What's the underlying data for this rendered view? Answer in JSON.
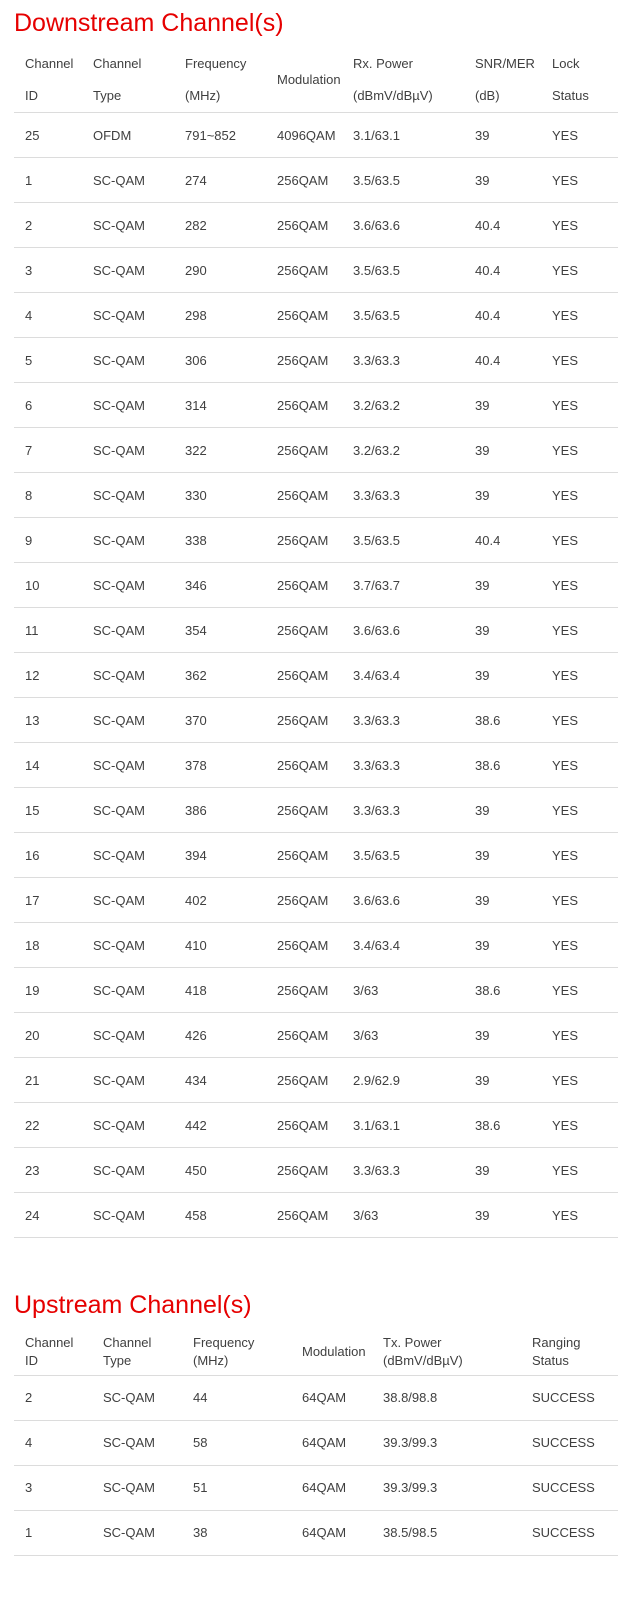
{
  "theme": {
    "accent_red": "#e60000",
    "text_color": "#3f3f3f",
    "border_color": "#dcdcdc",
    "background": "#ffffff"
  },
  "downstream": {
    "title": "Downstream Channel(s)",
    "headers": [
      "Channel\nID",
      "Channel Type",
      "Frequency\n(MHz)",
      "Modulation",
      "Rx. Power\n(dBmV/dBµV)",
      "SNR/MER\n(dB)",
      "Lock\nStatus"
    ],
    "rows": [
      [
        "25",
        "OFDM",
        "791~852",
        "4096QAM",
        "3.1/63.1",
        "39",
        "YES"
      ],
      [
        "1",
        "SC-QAM",
        "274",
        "256QAM",
        "3.5/63.5",
        "39",
        "YES"
      ],
      [
        "2",
        "SC-QAM",
        "282",
        "256QAM",
        "3.6/63.6",
        "40.4",
        "YES"
      ],
      [
        "3",
        "SC-QAM",
        "290",
        "256QAM",
        "3.5/63.5",
        "40.4",
        "YES"
      ],
      [
        "4",
        "SC-QAM",
        "298",
        "256QAM",
        "3.5/63.5",
        "40.4",
        "YES"
      ],
      [
        "5",
        "SC-QAM",
        "306",
        "256QAM",
        "3.3/63.3",
        "40.4",
        "YES"
      ],
      [
        "6",
        "SC-QAM",
        "314",
        "256QAM",
        "3.2/63.2",
        "39",
        "YES"
      ],
      [
        "7",
        "SC-QAM",
        "322",
        "256QAM",
        "3.2/63.2",
        "39",
        "YES"
      ],
      [
        "8",
        "SC-QAM",
        "330",
        "256QAM",
        "3.3/63.3",
        "39",
        "YES"
      ],
      [
        "9",
        "SC-QAM",
        "338",
        "256QAM",
        "3.5/63.5",
        "40.4",
        "YES"
      ],
      [
        "10",
        "SC-QAM",
        "346",
        "256QAM",
        "3.7/63.7",
        "39",
        "YES"
      ],
      [
        "11",
        "SC-QAM",
        "354",
        "256QAM",
        "3.6/63.6",
        "39",
        "YES"
      ],
      [
        "12",
        "SC-QAM",
        "362",
        "256QAM",
        "3.4/63.4",
        "39",
        "YES"
      ],
      [
        "13",
        "SC-QAM",
        "370",
        "256QAM",
        "3.3/63.3",
        "38.6",
        "YES"
      ],
      [
        "14",
        "SC-QAM",
        "378",
        "256QAM",
        "3.3/63.3",
        "38.6",
        "YES"
      ],
      [
        "15",
        "SC-QAM",
        "386",
        "256QAM",
        "3.3/63.3",
        "39",
        "YES"
      ],
      [
        "16",
        "SC-QAM",
        "394",
        "256QAM",
        "3.5/63.5",
        "39",
        "YES"
      ],
      [
        "17",
        "SC-QAM",
        "402",
        "256QAM",
        "3.6/63.6",
        "39",
        "YES"
      ],
      [
        "18",
        "SC-QAM",
        "410",
        "256QAM",
        "3.4/63.4",
        "39",
        "YES"
      ],
      [
        "19",
        "SC-QAM",
        "418",
        "256QAM",
        "3/63",
        "38.6",
        "YES"
      ],
      [
        "20",
        "SC-QAM",
        "426",
        "256QAM",
        "3/63",
        "39",
        "YES"
      ],
      [
        "21",
        "SC-QAM",
        "434",
        "256QAM",
        "2.9/62.9",
        "39",
        "YES"
      ],
      [
        "22",
        "SC-QAM",
        "442",
        "256QAM",
        "3.1/63.1",
        "38.6",
        "YES"
      ],
      [
        "23",
        "SC-QAM",
        "450",
        "256QAM",
        "3.3/63.3",
        "39",
        "YES"
      ],
      [
        "24",
        "SC-QAM",
        "458",
        "256QAM",
        "3/63",
        "39",
        "YES"
      ]
    ]
  },
  "upstream": {
    "title": "Upstream Channel(s)",
    "headers": [
      "Channel ID",
      "Channel Type",
      "Frequency (MHz)",
      "Modulation",
      "Tx. Power (dBmV/dBµV)",
      "Ranging Status"
    ],
    "rows": [
      [
        "2",
        "SC-QAM",
        "44",
        "64QAM",
        "38.8/98.8",
        "SUCCESS"
      ],
      [
        "4",
        "SC-QAM",
        "58",
        "64QAM",
        "39.3/99.3",
        "SUCCESS"
      ],
      [
        "3",
        "SC-QAM",
        "51",
        "64QAM",
        "39.3/99.3",
        "SUCCESS"
      ],
      [
        "1",
        "SC-QAM",
        "38",
        "64QAM",
        "38.5/98.5",
        "SUCCESS"
      ]
    ]
  }
}
